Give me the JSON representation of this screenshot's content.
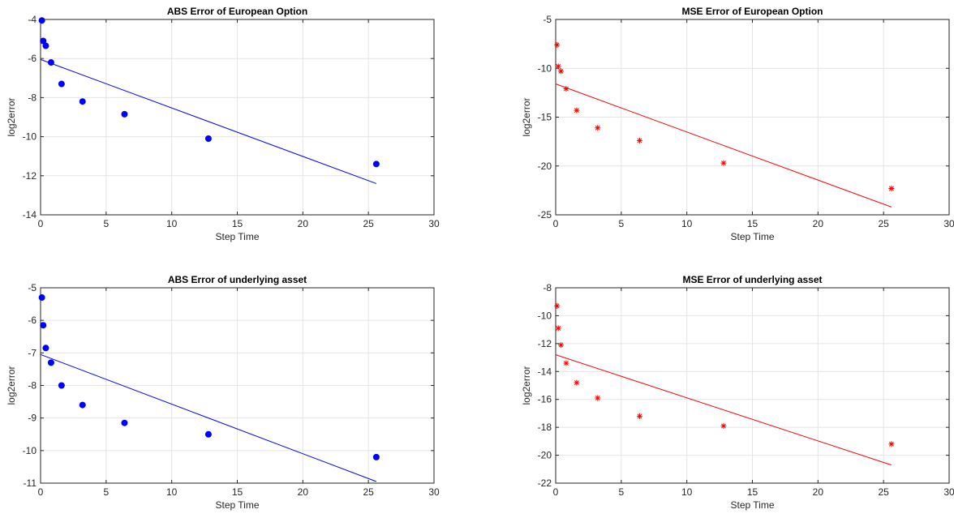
{
  "chart_data": [
    {
      "type": "scatter",
      "title": "ABS Error of European Option",
      "xlabel": "Step Time",
      "ylabel": "log2error",
      "xlim": [
        0,
        30
      ],
      "ylim": [
        -14,
        -4
      ],
      "xticks": [
        0,
        5,
        10,
        15,
        20,
        25,
        30
      ],
      "yticks": [
        -14,
        -12,
        -10,
        -8,
        -6,
        -4
      ],
      "grid": true,
      "marker": "dot",
      "color": "#0000ff",
      "points": [
        {
          "x": 0.1,
          "y": -4.05
        },
        {
          "x": 0.2,
          "y": -5.1
        },
        {
          "x": 0.4,
          "y": -5.35
        },
        {
          "x": 0.8,
          "y": -6.2
        },
        {
          "x": 1.6,
          "y": -7.3
        },
        {
          "x": 3.2,
          "y": -8.2
        },
        {
          "x": 6.4,
          "y": -8.85
        },
        {
          "x": 12.8,
          "y": -10.1
        },
        {
          "x": 25.6,
          "y": -11.4
        }
      ],
      "fit_line": {
        "x": [
          0,
          25.6
        ],
        "y": [
          -6.05,
          -12.4
        ]
      }
    },
    {
      "type": "scatter",
      "title": "MSE Error of European Option",
      "xlabel": "Step Time",
      "ylabel": "log2error",
      "xlim": [
        0,
        30
      ],
      "ylim": [
        -25,
        -5
      ],
      "xticks": [
        0,
        5,
        10,
        15,
        20,
        25,
        30
      ],
      "yticks": [
        -25,
        -20,
        -15,
        -10,
        -5
      ],
      "grid": true,
      "marker": "star",
      "color": "#ff0000",
      "points": [
        {
          "x": 0.1,
          "y": -7.6
        },
        {
          "x": 0.2,
          "y": -9.8
        },
        {
          "x": 0.4,
          "y": -10.3
        },
        {
          "x": 0.8,
          "y": -12.1
        },
        {
          "x": 1.6,
          "y": -14.3
        },
        {
          "x": 3.2,
          "y": -16.1
        },
        {
          "x": 6.4,
          "y": -17.4
        },
        {
          "x": 12.8,
          "y": -19.7
        },
        {
          "x": 25.6,
          "y": -22.3
        }
      ],
      "fit_line": {
        "x": [
          0,
          25.6
        ],
        "y": [
          -11.6,
          -24.2
        ]
      }
    },
    {
      "type": "scatter",
      "title": "ABS Error of underlying asset",
      "xlabel": "Step Time",
      "ylabel": "log2error",
      "xlim": [
        0,
        30
      ],
      "ylim": [
        -11,
        -5
      ],
      "xticks": [
        0,
        5,
        10,
        15,
        20,
        25,
        30
      ],
      "yticks": [
        -11,
        -10,
        -9,
        -8,
        -7,
        -6,
        -5
      ],
      "grid": true,
      "marker": "dot",
      "color": "#0000ff",
      "points": [
        {
          "x": 0.1,
          "y": -5.3
        },
        {
          "x": 0.2,
          "y": -6.15
        },
        {
          "x": 0.4,
          "y": -6.85
        },
        {
          "x": 0.8,
          "y": -7.3
        },
        {
          "x": 1.6,
          "y": -8.0
        },
        {
          "x": 3.2,
          "y": -8.6
        },
        {
          "x": 6.4,
          "y": -9.15
        },
        {
          "x": 12.8,
          "y": -9.5
        },
        {
          "x": 25.6,
          "y": -10.2
        }
      ],
      "fit_line": {
        "x": [
          0,
          25.6
        ],
        "y": [
          -7.05,
          -10.95
        ]
      }
    },
    {
      "type": "scatter",
      "title": "MSE Error of underlying asset",
      "xlabel": "Step Time",
      "ylabel": "log2error",
      "xlim": [
        0,
        30
      ],
      "ylim": [
        -22,
        -8
      ],
      "xticks": [
        0,
        5,
        10,
        15,
        20,
        25,
        30
      ],
      "yticks": [
        -22,
        -20,
        -18,
        -16,
        -14,
        -12,
        -10,
        -8
      ],
      "grid": true,
      "marker": "star",
      "color": "#ff0000",
      "points": [
        {
          "x": 0.1,
          "y": -9.3
        },
        {
          "x": 0.2,
          "y": -10.9
        },
        {
          "x": 0.4,
          "y": -12.1
        },
        {
          "x": 0.8,
          "y": -13.4
        },
        {
          "x": 1.6,
          "y": -14.8
        },
        {
          "x": 3.2,
          "y": -15.9
        },
        {
          "x": 6.4,
          "y": -17.2
        },
        {
          "x": 12.8,
          "y": -17.9
        },
        {
          "x": 25.6,
          "y": -19.2
        }
      ],
      "fit_line": {
        "x": [
          0,
          25.6
        ],
        "y": [
          -12.8,
          -20.7
        ]
      }
    }
  ]
}
